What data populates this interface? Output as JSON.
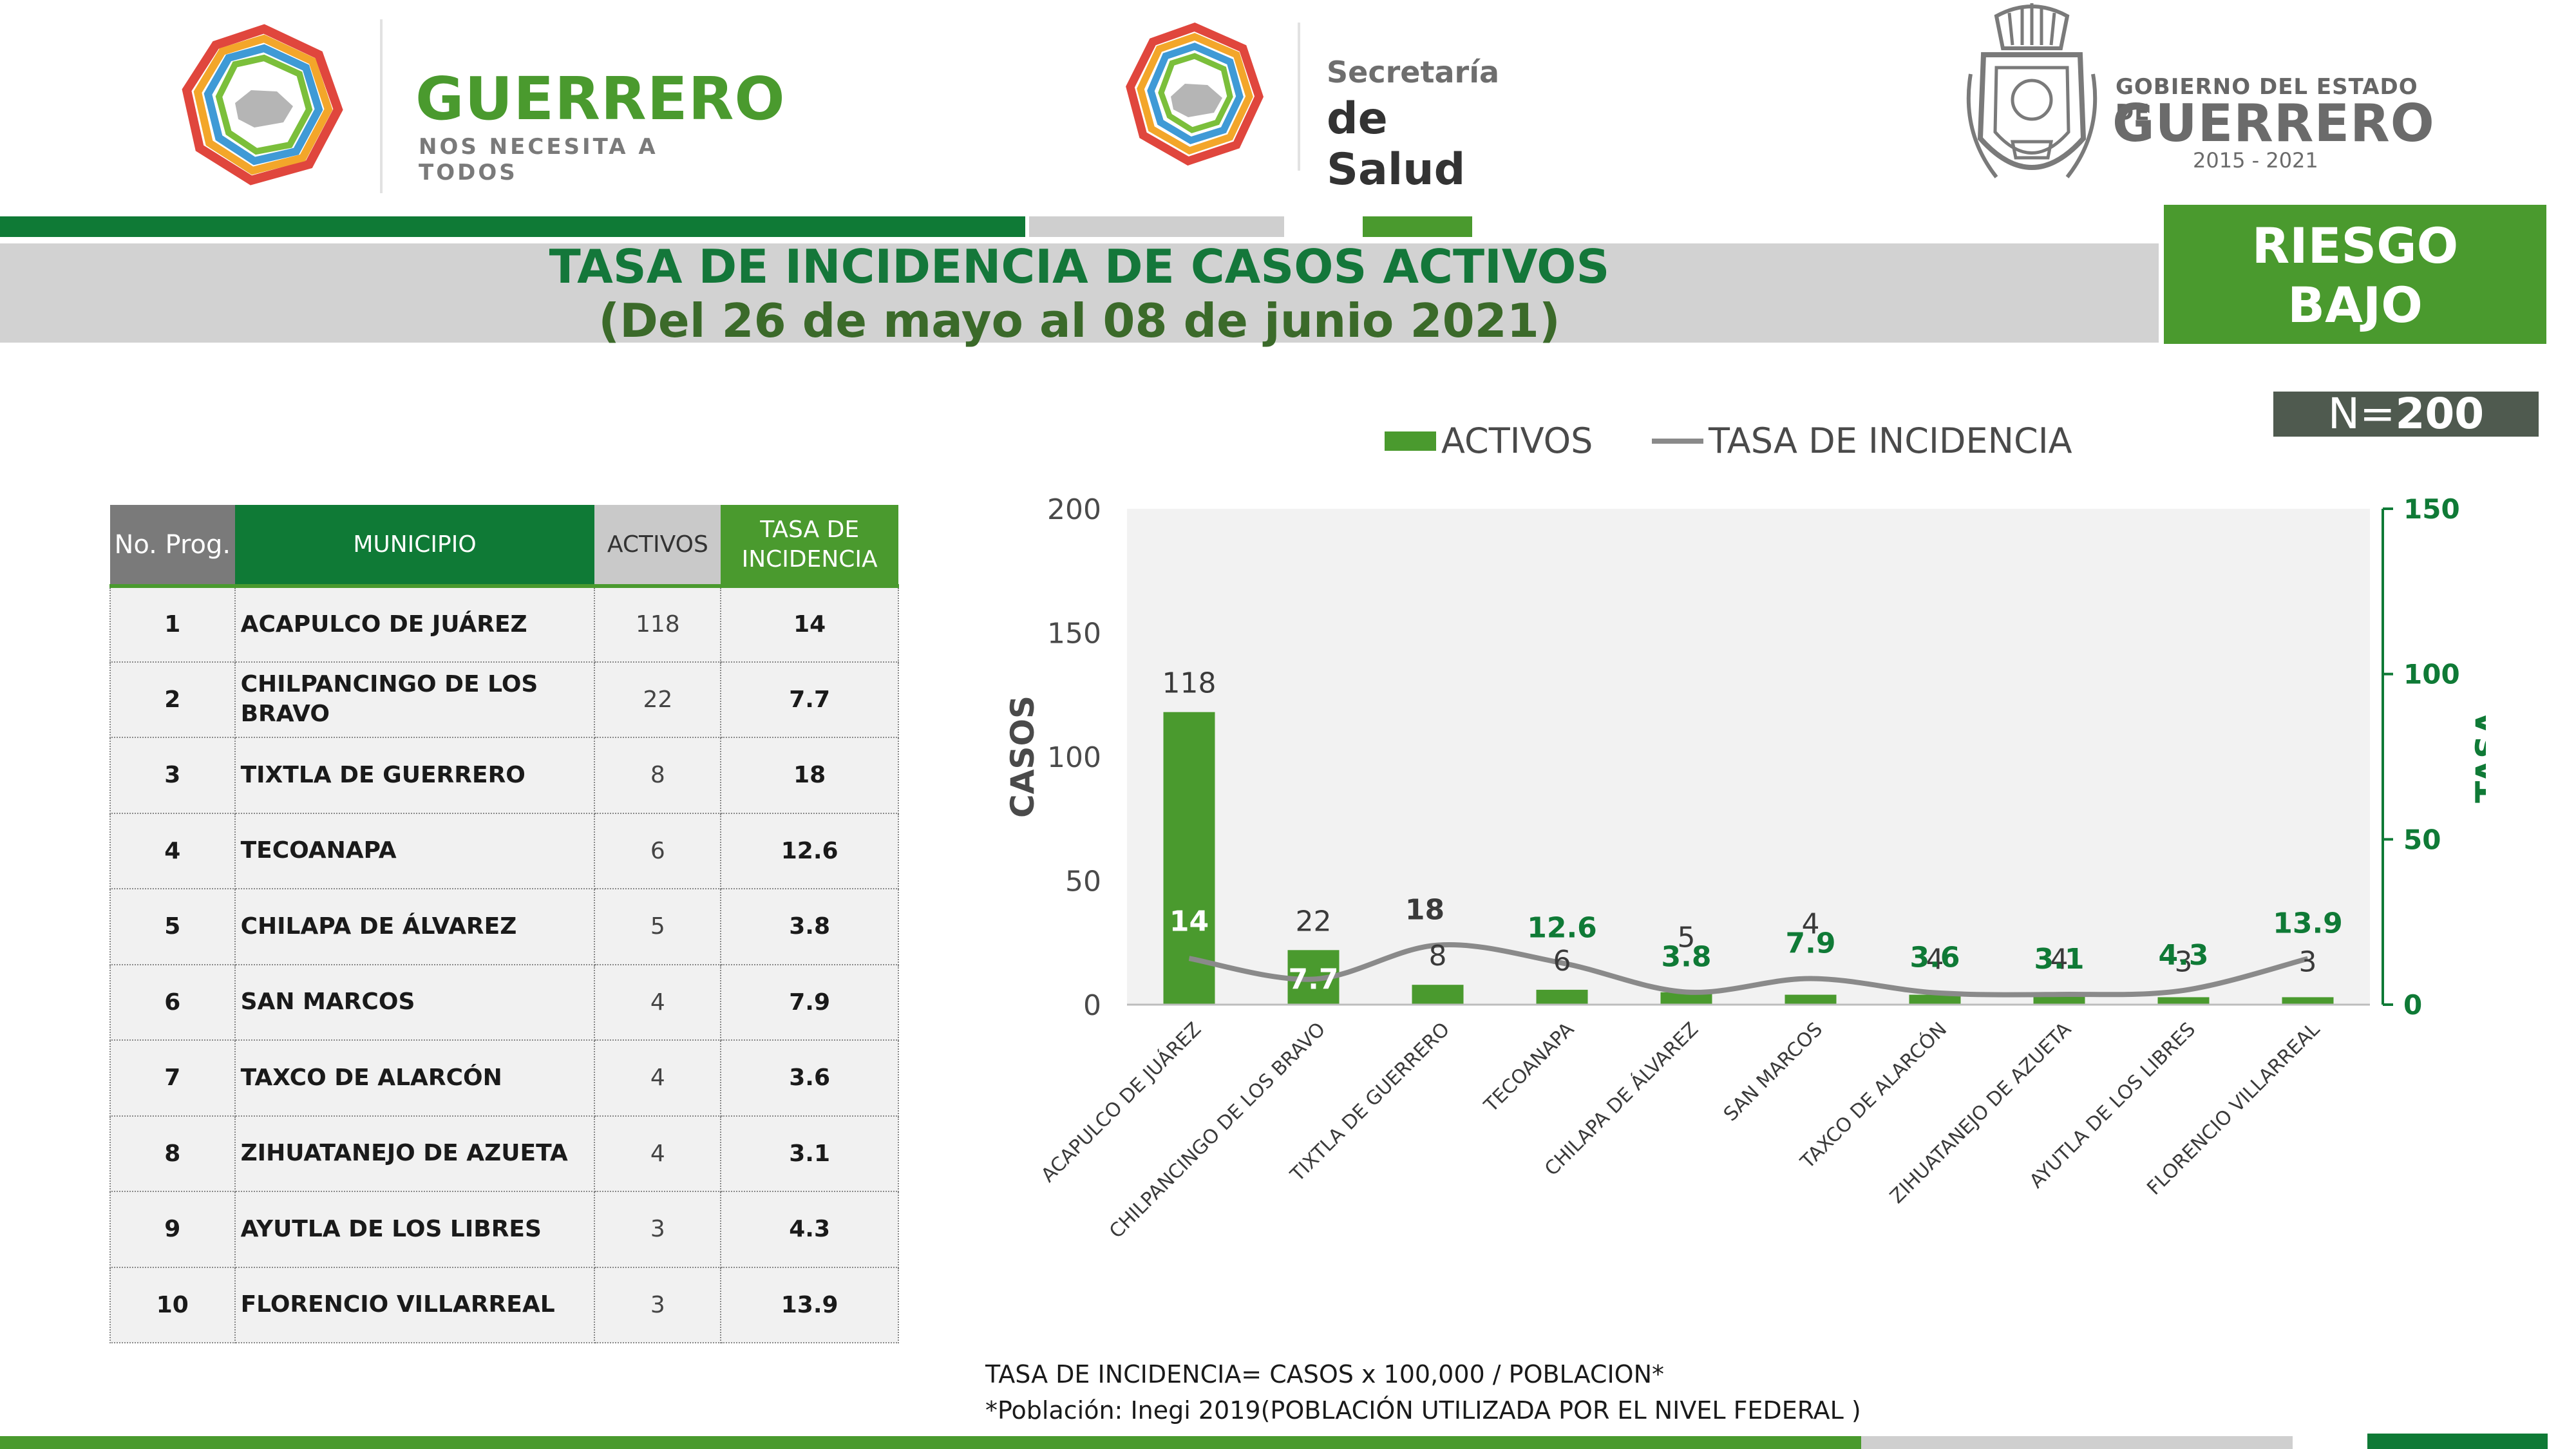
{
  "brand": {
    "state_name": "GUERRERO",
    "state_slogan": "NOS NECESITA A TODOS",
    "health_line1": "Secretaría",
    "health_line2": "de Salud",
    "gov_line1": "GOBIERNO DEL ESTADO DE",
    "gov_line2": "GUERRERO",
    "gov_years": "2015 - 2021"
  },
  "header": {
    "title_line1": "TASA DE INCIDENCIA DE CASOS ACTIVOS",
    "title_line2": "(Del 26 de mayo al 08 de junio 2021)",
    "risk_line1": "RIESGO",
    "risk_line2": "BAJO",
    "n_prefix": "N=",
    "n_value": "200"
  },
  "colors": {
    "dark_green": "#0f7a36",
    "green": "#4a9a2e",
    "gray": "#8a8a8a",
    "light_gray": "#d2d2d2"
  },
  "table": {
    "headers": {
      "no": "No. Prog.",
      "municipio": "MUNICIPIO",
      "activos": "ACTIVOS",
      "tasa": "TASA DE INCIDENCIA"
    },
    "rows": [
      {
        "no": "1",
        "municipio": "ACAPULCO DE JUÁREZ",
        "activos": "118",
        "tasa": "14"
      },
      {
        "no": "2",
        "municipio": "CHILPANCINGO DE LOS BRAVO",
        "activos": "22",
        "tasa": "7.7"
      },
      {
        "no": "3",
        "municipio": "TIXTLA DE GUERRERO",
        "activos": "8",
        "tasa": "18"
      },
      {
        "no": "4",
        "municipio": "TECOANAPA",
        "activos": "6",
        "tasa": "12.6"
      },
      {
        "no": "5",
        "municipio": "CHILAPA DE ÁLVAREZ",
        "activos": "5",
        "tasa": "3.8"
      },
      {
        "no": "6",
        "municipio": "SAN MARCOS",
        "activos": "4",
        "tasa": "7.9"
      },
      {
        "no": "7",
        "municipio": "TAXCO DE ALARCÓN",
        "activos": "4",
        "tasa": "3.6"
      },
      {
        "no": "8",
        "municipio": "ZIHUATANEJO DE AZUETA",
        "activos": "4",
        "tasa": "3.1"
      },
      {
        "no": "9",
        "municipio": "AYUTLA DE LOS LIBRES",
        "activos": "3",
        "tasa": "4.3"
      },
      {
        "no": "10",
        "municipio": "FLORENCIO VILLARREAL",
        "activos": "3",
        "tasa": "13.9"
      }
    ]
  },
  "chart_data": {
    "type": "bar",
    "categories": [
      "ACAPULCO DE JUÁREZ",
      "CHILPANCINGO DE LOS BRAVO",
      "TIXTLA DE GUERRERO",
      "TECOANAPA",
      "CHILAPA DE ÁLVAREZ",
      "SAN MARCOS",
      "TAXCO DE ALARCÓN",
      "ZIHUATANEJO DE AZUETA",
      "AYUTLA DE LOS LIBRES",
      "FLORENCIO VILLARREAL"
    ],
    "series": [
      {
        "name": "ACTIVOS",
        "type": "bar",
        "axis": "left",
        "values": [
          118,
          22,
          8,
          6,
          5,
          4,
          4,
          4,
          3,
          3
        ],
        "color": "#4a9a2e"
      },
      {
        "name": "TASA DE INCIDENCIA",
        "type": "line",
        "axis": "right",
        "values": [
          14,
          7.7,
          18,
          12.6,
          3.8,
          7.9,
          3.6,
          3.1,
          4.3,
          13.9
        ],
        "color": "#8a8a8a"
      }
    ],
    "ylabel": "CASOS",
    "y2label": "TASA",
    "ylim": [
      0,
      200
    ],
    "y2lim": [
      0,
      150
    ],
    "yticks": [
      0,
      50,
      100,
      150,
      200
    ],
    "y2ticks": [
      0,
      50,
      100,
      150
    ],
    "legend": "top",
    "grid": false
  },
  "footer": {
    "formula": "TASA DE INCIDENCIA= CASOS x 100,000 / POBLACION*",
    "source": "*Población: Inegi 2019(POBLACIÓN UTILIZADA POR EL NIVEL FEDERAL )"
  }
}
